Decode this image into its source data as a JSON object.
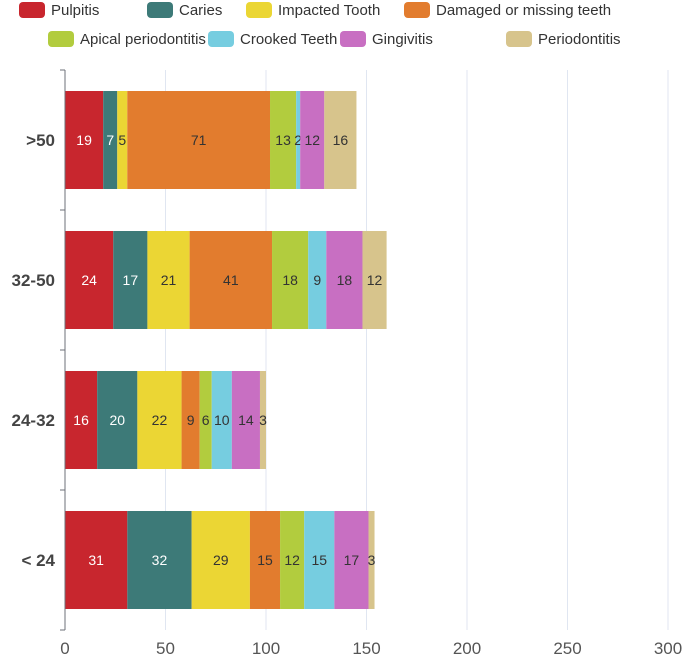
{
  "chart_data": {
    "type": "bar",
    "orientation": "horizontal",
    "stacked": true,
    "categories": [
      "< 24",
      "24-32",
      "32-50",
      ">50"
    ],
    "series": [
      {
        "name": "Pulpitis",
        "color": "#c8262e",
        "values": [
          31,
          16,
          24,
          19
        ]
      },
      {
        "name": "Caries",
        "color": "#3d7a78",
        "values": [
          32,
          20,
          17,
          7
        ]
      },
      {
        "name": "Impacted Tooth",
        "color": "#ebd634",
        "values": [
          29,
          22,
          21,
          5
        ]
      },
      {
        "name": "Damaged or missing teeth",
        "color": "#e27c2e",
        "values": [
          15,
          9,
          41,
          71
        ]
      },
      {
        "name": "Apical periodontitis",
        "color": "#b2cc3e",
        "values": [
          12,
          6,
          18,
          13
        ]
      },
      {
        "name": "Crooked Teeth",
        "color": "#76cde0",
        "values": [
          15,
          10,
          9,
          2
        ]
      },
      {
        "name": "Gingivitis",
        "color": "#c86fc2",
        "values": [
          17,
          14,
          18,
          12
        ]
      },
      {
        "name": "Periodontitis",
        "color": "#d7c48c",
        "values": [
          3,
          3,
          12,
          16
        ]
      }
    ],
    "xlim": [
      0,
      300
    ],
    "xticks": [
      0,
      50,
      100,
      150,
      200,
      250,
      300
    ],
    "grid": true,
    "legend_position": "top",
    "title": "",
    "xlabel": "",
    "ylabel": ""
  }
}
